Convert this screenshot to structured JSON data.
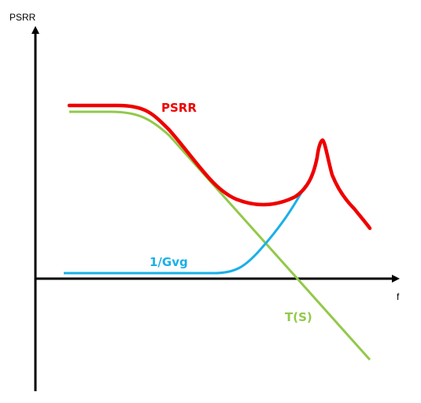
{
  "axes": {
    "y_label": "PSRR",
    "x_label": "f"
  },
  "curves": {
    "psrr": {
      "label": "PSRR",
      "color": "#ee0000"
    },
    "inv_gvg": {
      "label": "1/Gvg",
      "color": "#1ab0e8"
    },
    "ts": {
      "label": "T(S)",
      "color": "#92c94a"
    }
  }
}
